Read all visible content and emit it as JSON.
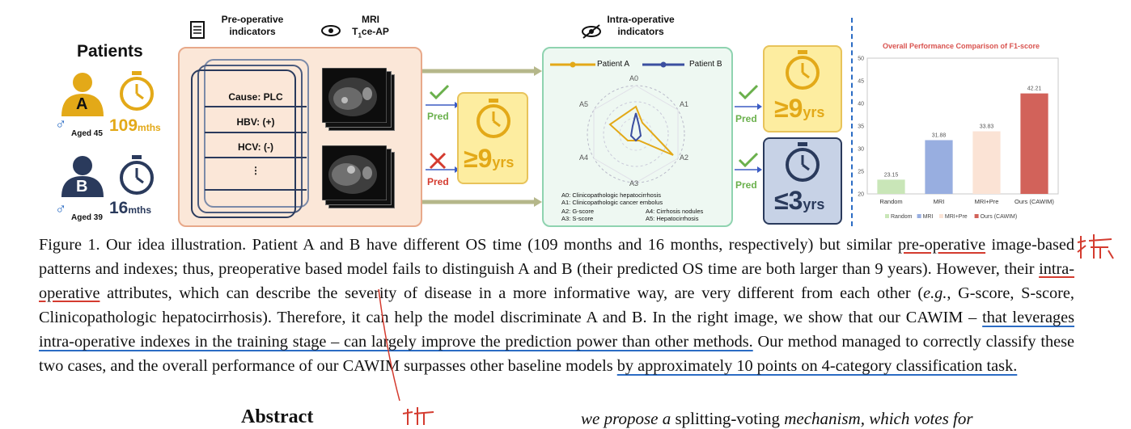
{
  "figure": {
    "patients_title": "Patients",
    "patient_a": {
      "letter": "A",
      "sex_symbol": "♂",
      "age": "Aged 45",
      "time_value": "109",
      "time_unit": "mths"
    },
    "patient_b": {
      "letter": "B",
      "sex_symbol": "♂",
      "age": "Aged 39",
      "time_value": "16",
      "time_unit": "mths"
    },
    "preop_header": "Pre-operative\nindicators",
    "mri_header_main": "MRI",
    "mri_header_sub_a": "T",
    "mri_header_sub_b": "1",
    "mri_header_sub_c": "ce-AP",
    "indicators": [
      "Cause: PLC",
      "HBV: (+)",
      "HCV: (-)",
      "⋮"
    ],
    "pred_label": "Pred",
    "pred_mid": {
      "symbol": "≥9",
      "unit": "yrs"
    },
    "intra_header": "Intra-operative\nindicators",
    "legend": {
      "a": "Patient A",
      "b": "Patient B"
    },
    "radar_axes": [
      "A0",
      "A1",
      "A2",
      "A3",
      "A4",
      "A5"
    ],
    "radar_definitions": [
      "A0: Clinicopathologic hepatocirrhosis",
      "A1: Clinicopathologic cancer embolus",
      "A2: G-score",
      "A3: S-score",
      "A4: Cirrhosis nodules",
      "A5: Hepatocirrhosis"
    ],
    "pred_right_top": {
      "symbol": "≥9",
      "unit": "yrs"
    },
    "pred_right_bottom": {
      "symbol": "≤3",
      "unit": "yrs"
    },
    "colors": {
      "yellow": "#e3a918",
      "navy": "#2a3a5c",
      "green": "#6ab04c",
      "red": "#d43b2f"
    }
  },
  "chart_data": {
    "type": "bar",
    "title": "Overall Performance Comparison of F1-score",
    "categories": [
      "Random",
      "MRI",
      "MRI+Pre",
      "Ours (CAWIM)"
    ],
    "values": [
      23.15,
      31.88,
      33.83,
      42.21
    ],
    "value_labels": [
      "23.15",
      "31.88",
      "33.83",
      "42.21"
    ],
    "colors": [
      "#c9e6b8",
      "#98aee0",
      "#fbe3d5",
      "#d2625a"
    ],
    "ylim": [
      20,
      50
    ],
    "yticks": [
      "20",
      "25",
      "30",
      "35",
      "40",
      "45",
      "50"
    ],
    "legend": [
      "Random",
      "MRI",
      "MRI+Pre",
      "Ours (CAWIM)"
    ],
    "legend_position": "bottom"
  },
  "caption": {
    "prefix": "Figure 1. Our idea illustration. Patient A and B have different OS time (109 months and 16 months, respectively) but similar ",
    "hl1": "pre-operative",
    "p2": " image-based patterns and indexes; thus, preoperative based model fails to distinguish A and B (their predicted OS time are both larger than 9 years).  However, their ",
    "hl2": "intra-operative",
    "p3": " attributes, which can describe the severity of disease in a more informative way, are very different from each other (",
    "eg": "e.g.",
    "p4": ", G-score, S-score, Clinicopathologic hepatocirrhosis). Therefore, it can help the model discriminate A and B. In the right image, we show that our CAWIM – ",
    "hl3": "that leverages intra-operative indexes in the training stage – can largely improve the prediction power than other methods.",
    "p5": " Our method managed to correctly classify these two cases, and the overall performance of our CAWIM surpasses other baseline models ",
    "hl4": "by approximately 10 points on 4-category classification task."
  },
  "abstract_heading": "Abstract",
  "next_text": {
    "a": "we propose a",
    "b": " splitting-voting ",
    "c": "mechanism, which votes for"
  }
}
